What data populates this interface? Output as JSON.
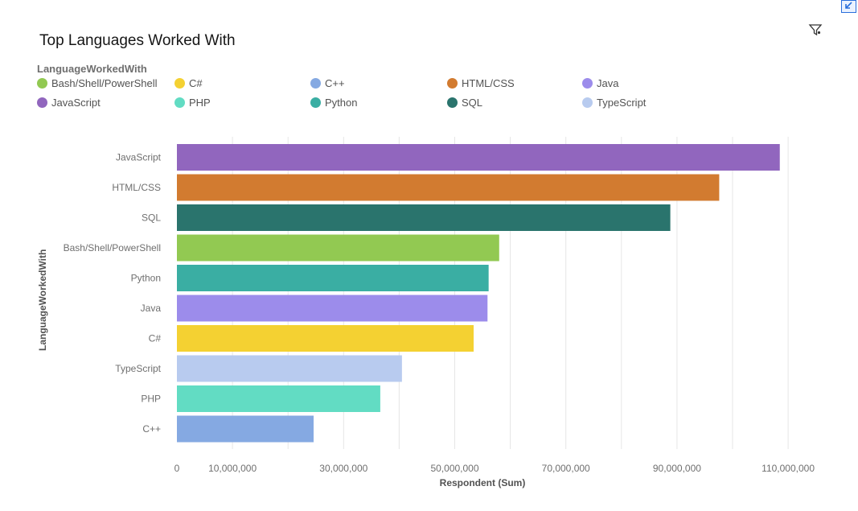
{
  "title": "Top Languages Worked With",
  "legend_title": "LanguageWorkedWith",
  "icons": {
    "expand": "collapse-arrow-icon",
    "filter": "filter-icon"
  },
  "chart_data": {
    "type": "bar",
    "orientation": "horizontal",
    "categories": [
      "JavaScript",
      "HTML/CSS",
      "SQL",
      "Bash/Shell/PowerShell",
      "Python",
      "Java",
      "C#",
      "TypeScript",
      "PHP",
      "C++"
    ],
    "values": [
      108500000,
      97600000,
      88800000,
      58000000,
      56100000,
      55900000,
      53400000,
      40500000,
      36600000,
      24600000
    ],
    "colors": [
      "#9166be",
      "#d27b30",
      "#2a746d",
      "#92c952",
      "#3aaea3",
      "#9c8ceb",
      "#f4d132",
      "#b8cbef",
      "#62dcc3",
      "#85a9e2"
    ],
    "legend": [
      {
        "label": "Bash/Shell/PowerShell",
        "color": "#92c952"
      },
      {
        "label": "C#",
        "color": "#f4d132"
      },
      {
        "label": "C++",
        "color": "#85a9e2"
      },
      {
        "label": "HTML/CSS",
        "color": "#d27b30"
      },
      {
        "label": "Java",
        "color": "#9c8ceb"
      },
      {
        "label": "JavaScript",
        "color": "#9166be"
      },
      {
        "label": "PHP",
        "color": "#62dcc3"
      },
      {
        "label": "Python",
        "color": "#3aaea3"
      },
      {
        "label": "SQL",
        "color": "#2a746d"
      },
      {
        "label": "TypeScript",
        "color": "#b8cbef"
      }
    ],
    "xticks": [
      "0",
      "10,000,000",
      "30,000,000",
      "50,000,000",
      "70,000,000",
      "90,000,000",
      "110,000,000"
    ],
    "xtick_values": [
      0,
      10000000,
      30000000,
      50000000,
      70000000,
      90000000,
      110000000
    ],
    "xlim": [
      0,
      110000000
    ],
    "xlabel": "Respondent (Sum)",
    "ylabel": "LanguageWorkedWith",
    "grid": true,
    "legend_position": "top"
  }
}
